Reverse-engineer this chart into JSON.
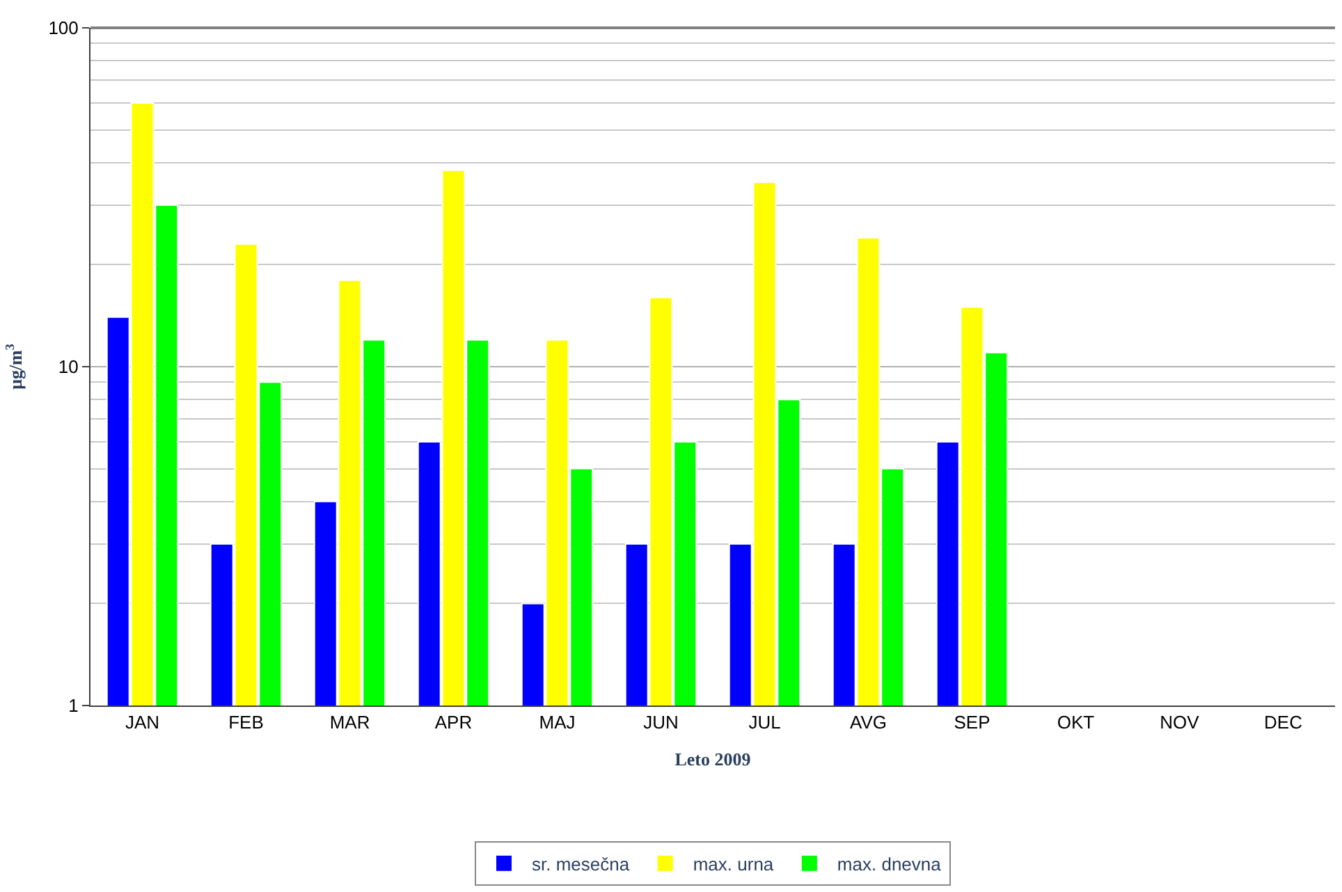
{
  "chart_data": {
    "type": "bar",
    "xlabel": "Leto 2009",
    "ylabel": "μg/m$^{3}$",
    "categories": [
      "JAN",
      "FEB",
      "MAR",
      "APR",
      "MAJ",
      "JUN",
      "JUL",
      "AVG",
      "SEP",
      "OKT",
      "NOV",
      "DEC"
    ],
    "series": [
      {
        "name": "sr. mesečna",
        "color": "#0000ff",
        "values": [
          14,
          3,
          4,
          6,
          2,
          3,
          3,
          3,
          6,
          null,
          null,
          null
        ]
      },
      {
        "name": "max. urna",
        "color": "#ffff00",
        "values": [
          60,
          23,
          18,
          38,
          12,
          16,
          35,
          24,
          15,
          null,
          null,
          null
        ]
      },
      {
        "name": "max. dnevna",
        "color": "#00ff00",
        "values": [
          30,
          9,
          12,
          12,
          5,
          6,
          8,
          5,
          11,
          null,
          null,
          null
        ]
      }
    ],
    "log": "y",
    "ylim": [
      1,
      100
    ],
    "yticks": [
      1,
      10,
      100
    ],
    "grid": "y",
    "legend": "bottom"
  }
}
